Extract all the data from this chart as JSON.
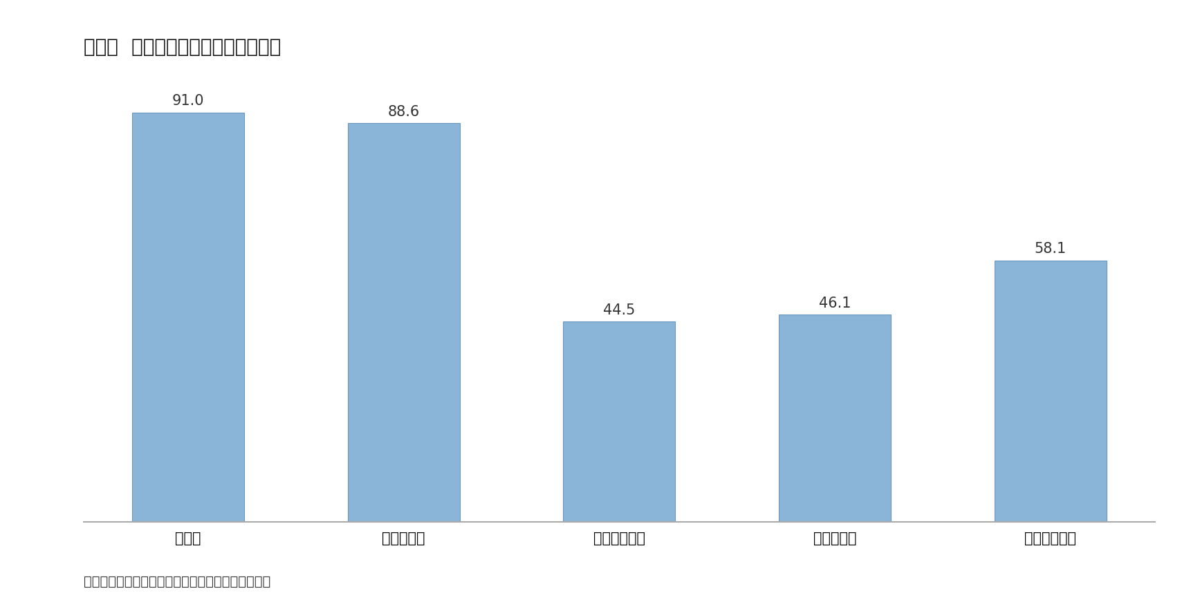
{
  "title": "図表３  支持政党別不買運動の参加率",
  "categories": [
    "正義党",
    "共に民主党",
    "正しい未来党",
    "自由韓国党",
    "支持政党なし"
  ],
  "values": [
    91.0,
    88.6,
    44.5,
    46.1,
    58.1
  ],
  "bar_color": "#8ab4d8",
  "bar_edgecolor": "#6a97bf",
  "background_color": "#ffffff",
  "label_fontsize": 15,
  "title_fontsize": 20,
  "tick_fontsize": 15,
  "caption": "資料）リアルメーターのホームページから筆者作成",
  "caption_fontsize": 14,
  "ylim": [
    0,
    100
  ],
  "bar_width": 0.52
}
